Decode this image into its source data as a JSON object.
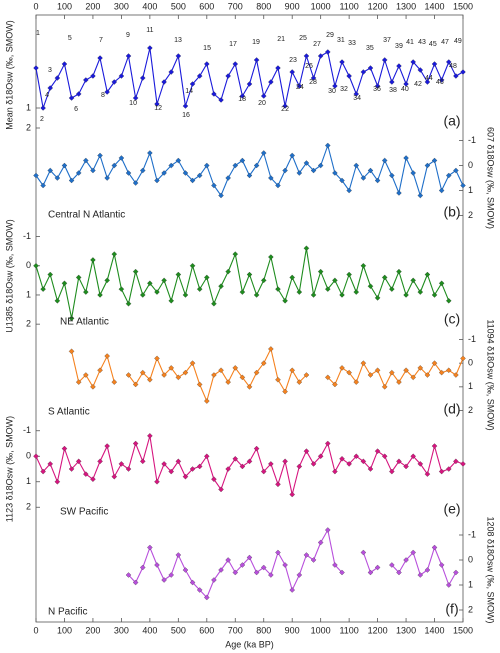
{
  "chart_data": [
    {
      "type": "line",
      "axis_side": "left",
      "y_label": "Mean δ18Osw (‰, SMOW)",
      "y_label_color": "#1a1adb",
      "panel_label": "(a)",
      "xlim": [
        0,
        1500
      ],
      "xticks": [
        0,
        100,
        200,
        300,
        400,
        500,
        600,
        700,
        800,
        900,
        1000,
        1100,
        1200,
        1300,
        1400,
        1500
      ],
      "xaxis_side": "top",
      "ylim": [
        -3.5,
        2.2
      ],
      "yticks": [
        1,
        2
      ],
      "x": [
        0,
        25,
        50,
        75,
        100,
        125,
        150,
        175,
        200,
        225,
        250,
        275,
        300,
        325,
        350,
        375,
        400,
        425,
        450,
        475,
        500,
        525,
        550,
        575,
        600,
        625,
        650,
        675,
        700,
        725,
        750,
        775,
        800,
        825,
        850,
        875,
        900,
        925,
        950,
        975,
        1000,
        1025,
        1050,
        1075,
        1100,
        1125,
        1150,
        1175,
        1200,
        1225,
        1250,
        1275,
        1300,
        1325,
        1350,
        1375,
        1400,
        1425,
        1450,
        1475,
        1500
      ],
      "series": [
        {
          "color": "#1a1adb",
          "values": [
            -1.0,
            1.0,
            0.0,
            -0.5,
            -1.2,
            0.5,
            0.3,
            -0.4,
            -0.6,
            -1.5,
            0.2,
            -0.3,
            -0.6,
            -1.6,
            0.5,
            -0.5,
            -2.0,
            0.8,
            -0.3,
            -0.8,
            -1.6,
            0.9,
            -0.2,
            -0.6,
            -1.2,
            0.3,
            0.6,
            -0.6,
            -1.2,
            0.4,
            -0.2,
            -1.4,
            0.4,
            -0.3,
            -1.0,
            0.9,
            -0.8,
            -0.1,
            -1.6,
            -0.5,
            -1.6,
            -1.8,
            -0.1,
            -1.3,
            -0.6,
            0.3,
            -0.8,
            -1.0,
            -0.1,
            -1.4,
            -0.3,
            -1.1,
            -0.2,
            -1.3,
            -0.9,
            -0.3,
            -1.2,
            -0.4,
            -1.3,
            -0.6,
            -0.8
          ]
        }
      ],
      "annotations": [
        {
          "text": "1",
          "x": 7,
          "y": -2.75
        },
        {
          "text": "3",
          "x": 49,
          "y": -0.9
        },
        {
          "text": "5",
          "x": 119,
          "y": -2.5
        },
        {
          "text": "7",
          "x": 228,
          "y": -2.4
        },
        {
          "text": "9",
          "x": 323,
          "y": -2.65
        },
        {
          "text": "11",
          "x": 400,
          "y": -2.9
        },
        {
          "text": "13",
          "x": 499,
          "y": -2.4
        },
        {
          "text": "15",
          "x": 601,
          "y": -2.0
        },
        {
          "text": "17",
          "x": 692,
          "y": -2.2
        },
        {
          "text": "19",
          "x": 773,
          "y": -2.3
        },
        {
          "text": "21",
          "x": 861,
          "y": -2.45
        },
        {
          "text": "23",
          "x": 903,
          "y": -1.4
        },
        {
          "text": "25",
          "x": 938,
          "y": -2.5
        },
        {
          "text": "27",
          "x": 987,
          "y": -2.2
        },
        {
          "text": "29",
          "x": 1033,
          "y": -2.65
        },
        {
          "text": "31",
          "x": 1071,
          "y": -2.4
        },
        {
          "text": "33",
          "x": 1110,
          "y": -2.25
        },
        {
          "text": "35",
          "x": 1173,
          "y": -2.0
        },
        {
          "text": "37",
          "x": 1233,
          "y": -2.4
        },
        {
          "text": "39",
          "x": 1275,
          "y": -2.1
        },
        {
          "text": "41",
          "x": 1314,
          "y": -2.3
        },
        {
          "text": "43",
          "x": 1356,
          "y": -2.3
        },
        {
          "text": "45",
          "x": 1394,
          "y": -2.2
        },
        {
          "text": "47",
          "x": 1437,
          "y": -2.3
        },
        {
          "text": "49",
          "x": 1482,
          "y": -2.35
        },
        {
          "text": "2",
          "x": 21,
          "y": 1.55
        },
        {
          "text": "4",
          "x": 39,
          "y": 0.35
        },
        {
          "text": "6",
          "x": 141,
          "y": 1.05
        },
        {
          "text": "8",
          "x": 235,
          "y": 0.35
        },
        {
          "text": "10",
          "x": 341,
          "y": 0.75
        },
        {
          "text": "12",
          "x": 429,
          "y": 1.0
        },
        {
          "text": "14",
          "x": 538,
          "y": 0.15
        },
        {
          "text": "16",
          "x": 527,
          "y": 1.35
        },
        {
          "text": "18",
          "x": 724,
          "y": 0.55
        },
        {
          "text": "20",
          "x": 794,
          "y": 0.75
        },
        {
          "text": "22",
          "x": 875,
          "y": 1.05
        },
        {
          "text": "24",
          "x": 927,
          "y": -0.05
        },
        {
          "text": "26",
          "x": 959,
          "y": -1.1
        },
        {
          "text": "28",
          "x": 973,
          "y": -0.3
        },
        {
          "text": "30",
          "x": 1040,
          "y": 0.15
        },
        {
          "text": "32",
          "x": 1082,
          "y": 0.05
        },
        {
          "text": "34",
          "x": 1128,
          "y": 0.5
        },
        {
          "text": "36",
          "x": 1198,
          "y": 0.05
        },
        {
          "text": "38",
          "x": 1254,
          "y": 0.1
        },
        {
          "text": "40",
          "x": 1296,
          "y": 0.05
        },
        {
          "text": "42",
          "x": 1342,
          "y": -0.2
        },
        {
          "text": "44",
          "x": 1380,
          "y": -0.5
        },
        {
          "text": "46",
          "x": 1419,
          "y": -0.3
        },
        {
          "text": "48",
          "x": 1465,
          "y": -1.1
        }
      ]
    },
    {
      "type": "line",
      "axis_side": "right",
      "y_label": "607 δ18Osw (‰, SMOW)",
      "panel_label": "(b)",
      "ylim": [
        -1.3,
        2.3
      ],
      "yticks": [
        -1,
        0,
        1,
        2
      ],
      "x": [
        0,
        25,
        50,
        75,
        100,
        125,
        150,
        175,
        200,
        225,
        250,
        275,
        300,
        325,
        350,
        375,
        400,
        425,
        450,
        475,
        500,
        525,
        550,
        575,
        600,
        625,
        650,
        675,
        700,
        725,
        750,
        775,
        800,
        825,
        850,
        875,
        900,
        925,
        950,
        975,
        1000,
        1025,
        1050,
        1075,
        1100,
        1125,
        1150,
        1175,
        1200,
        1225,
        1250,
        1275,
        1300,
        1325,
        1350,
        1375,
        1400,
        1425,
        1450,
        1475,
        1500
      ],
      "series": [
        {
          "name": "Central N Atlantic",
          "color": "#1f6fc9",
          "values": [
            0.4,
            0.8,
            0.2,
            0.5,
            0.0,
            0.6,
            0.3,
            -0.2,
            0.2,
            -0.4,
            0.5,
            0.0,
            -0.3,
            0.3,
            0.7,
            0.2,
            -0.5,
            0.6,
            0.3,
            0.0,
            -0.2,
            0.3,
            0.6,
            0.4,
            0.0,
            0.8,
            1.2,
            0.5,
            0.0,
            -0.2,
            0.4,
            0.0,
            -0.5,
            0.5,
            0.8,
            0.2,
            -0.4,
            0.3,
            -0.1,
            0.2,
            0.0,
            -0.8,
            0.3,
            0.6,
            1.0,
            0.0,
            0.5,
            0.2,
            0.6,
            -0.2,
            0.4,
            1.1,
            -0.3,
            0.3,
            1.2,
            0.0,
            -0.2,
            1.0,
            0.4,
            0.2,
            0.8
          ]
        }
      ]
    },
    {
      "type": "line",
      "axis_side": "left",
      "y_label": "U1385 δ18Osw (‰, SMOW)",
      "panel_label": "(c)",
      "ylim": [
        -1.5,
        2.2
      ],
      "yticks": [
        -1,
        0,
        1,
        2
      ],
      "x": [
        0,
        25,
        50,
        75,
        100,
        125,
        150,
        175,
        200,
        225,
        250,
        275,
        300,
        325,
        350,
        375,
        400,
        425,
        450,
        475,
        500,
        525,
        550,
        575,
        600,
        625,
        650,
        675,
        700,
        725,
        750,
        775,
        800,
        825,
        850,
        875,
        900,
        925,
        950,
        975,
        1000,
        1025,
        1050,
        1075,
        1100,
        1125,
        1150,
        1175,
        1200,
        1225,
        1250,
        1275,
        1300,
        1325,
        1350,
        1375,
        1400,
        1425,
        1450,
        1475,
        1500
      ],
      "series": [
        {
          "name": "NE Atlantic",
          "color": "#1e8c1e",
          "values": [
            0.0,
            0.8,
            0.3,
            1.2,
            0.6,
            1.8,
            0.4,
            0.9,
            -0.2,
            1.0,
            0.5,
            -0.4,
            0.8,
            1.3,
            0.2,
            1.0,
            0.6,
            0.9,
            0.5,
            1.2,
            0.3,
            1.0,
            0.0,
            0.8,
            0.4,
            1.3,
            0.7,
            0.2,
            -0.4,
            0.9,
            0.3,
            1.0,
            0.5,
            -0.3,
            0.8,
            1.2,
            0.4,
            0.9,
            -0.6,
            1.0,
            0.2,
            0.8,
            0.5,
            1.0,
            0.3,
            0.9,
            0.0,
            0.7,
            1.1,
            0.4,
            0.8,
            0.2,
            1.0,
            0.5,
            0.9,
            0.3,
            1.0,
            0.6,
            1.2,
            null,
            null
          ]
        }
      ]
    },
    {
      "type": "line",
      "axis_side": "right",
      "y_label": "11094 δ18Osw (‰, SMOW)",
      "panel_label": "(d)",
      "ylim": [
        -1.4,
        2.4
      ],
      "yticks": [
        -1,
        0,
        1,
        2
      ],
      "x": [
        0,
        25,
        50,
        75,
        100,
        125,
        150,
        175,
        200,
        225,
        250,
        275,
        300,
        325,
        350,
        375,
        400,
        425,
        450,
        475,
        500,
        525,
        550,
        575,
        600,
        625,
        650,
        675,
        700,
        725,
        750,
        775,
        800,
        825,
        850,
        875,
        900,
        925,
        950,
        975,
        1000,
        1025,
        1050,
        1075,
        1100,
        1125,
        1150,
        1175,
        1200,
        1225,
        1250,
        1275,
        1300,
        1325,
        1350,
        1375,
        1400,
        1425,
        1450,
        1475,
        1500
      ],
      "series": [
        {
          "name": "S Atlantic",
          "color": "#f5821f",
          "values": [
            null,
            null,
            null,
            null,
            null,
            -0.5,
            0.8,
            0.5,
            1.0,
            0.3,
            -0.3,
            0.8,
            null,
            0.5,
            0.9,
            0.4,
            0.7,
            -0.2,
            0.5,
            0.2,
            0.6,
            0.4,
            0.0,
            0.9,
            1.6,
            0.5,
            0.3,
            0.8,
            0.2,
            0.6,
            1.0,
            0.4,
            0.0,
            -0.6,
            0.7,
            1.2,
            0.3,
            0.8,
            0.5,
            null,
            null,
            0.6,
            0.9,
            0.2,
            0.4,
            0.8,
            0.0,
            0.5,
            0.3,
            1.0,
            0.4,
            0.8,
            0.3,
            0.6,
            0.2,
            0.5,
            0.0,
            0.4,
            0.3,
            0.5,
            -0.2
          ]
        }
      ]
    },
    {
      "type": "line",
      "axis_side": "left",
      "y_label": "1123 δ18Osw (‰, SMOW)",
      "panel_label": "(e)",
      "ylim": [
        -1.5,
        2.5
      ],
      "yticks": [
        -1,
        0,
        1,
        2
      ],
      "x": [
        0,
        25,
        50,
        75,
        100,
        125,
        150,
        175,
        200,
        225,
        250,
        275,
        300,
        325,
        350,
        375,
        400,
        425,
        450,
        475,
        500,
        525,
        550,
        575,
        600,
        625,
        650,
        675,
        700,
        725,
        750,
        775,
        800,
        825,
        850,
        875,
        900,
        925,
        950,
        975,
        1000,
        1025,
        1050,
        1075,
        1100,
        1125,
        1150,
        1175,
        1200,
        1225,
        1250,
        1275,
        1300,
        1325,
        1350,
        1375,
        1400,
        1425,
        1450,
        1475,
        1500
      ],
      "series": [
        {
          "name": "SW Pacific",
          "color": "#d6157f",
          "values": [
            0.0,
            0.6,
            0.3,
            1.0,
            -0.3,
            0.5,
            0.2,
            0.7,
            0.9,
            0.2,
            -0.4,
            0.8,
            0.3,
            0.5,
            -0.5,
            0.2,
            -0.8,
            1.0,
            0.3,
            0.6,
            0.2,
            0.8,
            0.5,
            0.4,
            0.0,
            0.9,
            1.3,
            0.5,
            0.1,
            0.4,
            0.2,
            -0.3,
            0.6,
            0.3,
            1.1,
            0.2,
            1.5,
            0.4,
            -0.2,
            0.3,
            0.0,
            -0.5,
            0.6,
            0.1,
            0.3,
            0.0,
            0.2,
            0.5,
            -0.2,
            0.0,
            0.6,
            0.2,
            0.4,
            0.0,
            0.3,
            0.7,
            -0.4,
            0.6,
            0.5,
            0.2,
            0.3
          ]
        }
      ]
    },
    {
      "type": "line",
      "axis_side": "right",
      "y_label": "1208 δ18Osw (‰, SMOW)",
      "panel_label": "(f)",
      "xlim": [
        0,
        1500
      ],
      "xticks": [
        0,
        100,
        200,
        300,
        400,
        500,
        600,
        700,
        800,
        900,
        1000,
        1100,
        1200,
        1300,
        1400,
        1500
      ],
      "xaxis_side": "bottom",
      "x_label": "Age (ka BP)",
      "ylim": [
        -1.6,
        2.4
      ],
      "yticks": [
        -1,
        0,
        1,
        2
      ],
      "x": [
        0,
        25,
        50,
        75,
        100,
        125,
        150,
        175,
        200,
        225,
        250,
        275,
        300,
        325,
        350,
        375,
        400,
        425,
        450,
        475,
        500,
        525,
        550,
        575,
        600,
        625,
        650,
        675,
        700,
        725,
        750,
        775,
        800,
        825,
        850,
        875,
        900,
        925,
        950,
        975,
        1000,
        1025,
        1050,
        1075,
        1100,
        1125,
        1150,
        1175,
        1200,
        1225,
        1250,
        1275,
        1300,
        1325,
        1350,
        1375,
        1400,
        1425,
        1450,
        1475,
        1500
      ],
      "series": [
        {
          "name": "N Pacific",
          "color": "#b84fdc",
          "values": [
            null,
            null,
            null,
            null,
            null,
            null,
            null,
            null,
            null,
            null,
            null,
            null,
            null,
            0.6,
            0.9,
            0.3,
            -0.5,
            0.2,
            0.8,
            0.6,
            -0.2,
            0.4,
            0.9,
            1.2,
            1.5,
            0.8,
            0.4,
            0.0,
            0.5,
            0.2,
            -0.1,
            0.5,
            0.3,
            0.6,
            -0.3,
            0.2,
            1.2,
            0.6,
            -0.2,
            0.0,
            -0.7,
            -1.2,
            0.2,
            0.5,
            null,
            null,
            -0.3,
            0.5,
            0.3,
            null,
            0.2,
            0.5,
            0.0,
            -0.3,
            0.6,
            0.4,
            -0.5,
            0.2,
            1.0,
            0.5,
            null
          ]
        }
      ]
    }
  ]
}
